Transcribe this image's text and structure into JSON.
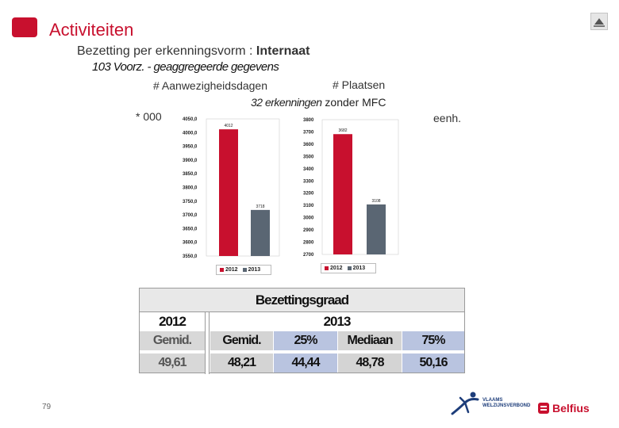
{
  "header": {
    "title": "Activiteiten",
    "subtitle_prefix": "Bezetting per erkenningsvorm : ",
    "subtitle_bold": "Internaat",
    "subtitle2": "103 Voorz. - geaggregeerde gegevens",
    "label_days": "# Aanwezigheidsdagen",
    "label_places": "# Plaatsen",
    "label_32_italic": "32 erkenningen",
    "label_32_rest": " zonder MFC",
    "unit_left": "* 000",
    "unit_right": "eenh."
  },
  "colors": {
    "accent": "#c8102e",
    "series_2012": "#c8102e",
    "series_2013": "#5a6673",
    "table_blue": "#b9c4e0"
  },
  "chart_data": [
    {
      "type": "bar",
      "title": "# Aanwezigheidsdagen",
      "categories": [
        "2012",
        "2013"
      ],
      "values": [
        4012,
        3718
      ],
      "data_labels": [
        "4012",
        "3718"
      ],
      "ylim": [
        3550,
        4050
      ],
      "y_ticks": [
        "4050,0",
        "4000,0",
        "3950,0",
        "3900,0",
        "3850,0",
        "3800,0",
        "3750,0",
        "3700,0",
        "3650,0",
        "3600,0",
        "3550,0"
      ],
      "y_tick_values": [
        4050,
        4000,
        3950,
        3900,
        3850,
        3800,
        3750,
        3700,
        3650,
        3600,
        3550
      ],
      "legend": [
        "2012",
        "2013"
      ],
      "legend_position": "bottom",
      "grid": false
    },
    {
      "type": "bar",
      "title": "# Plaatsen",
      "categories": [
        "2012",
        "2013"
      ],
      "values": [
        3682,
        3108
      ],
      "data_labels": [
        "3682",
        "3108"
      ],
      "ylim": [
        2700,
        3800
      ],
      "y_ticks": [
        "3800",
        "3700",
        "3600",
        "3500",
        "3400",
        "3300",
        "3200",
        "3100",
        "3000",
        "2900",
        "2800",
        "2700"
      ],
      "y_tick_values": [
        3800,
        3700,
        3600,
        3500,
        3400,
        3300,
        3200,
        3100,
        3000,
        2900,
        2800,
        2700
      ],
      "legend": [
        "2012",
        "2013"
      ],
      "legend_position": "bottom",
      "grid": false
    }
  ],
  "occupancy": {
    "title": "Bezettingsgraad",
    "year_2012": "2012",
    "year_2013": "2013",
    "col_2012_label": "Gemid.",
    "col_2012_value": "49,61",
    "col_2013_avg_label": "Gemid.",
    "col_2013_avg_value": "48,21",
    "col_25_label": "25%",
    "col_25_value": "44,44",
    "col_median_label": "Mediaan",
    "col_median_value": "48,78",
    "col_75_label": "75%",
    "col_75_value": "50,16"
  },
  "footer": {
    "page_number": "79",
    "logo_vv_line1": "VLAAMS",
    "logo_vv_line2": "WELZIJNSVERBOND",
    "logo_belfius": "Belfius"
  },
  "icons": {
    "corner": "screen-icon",
    "vv_logo": "running-figure-icon",
    "belfius_logo": "belfius-mark-icon"
  }
}
